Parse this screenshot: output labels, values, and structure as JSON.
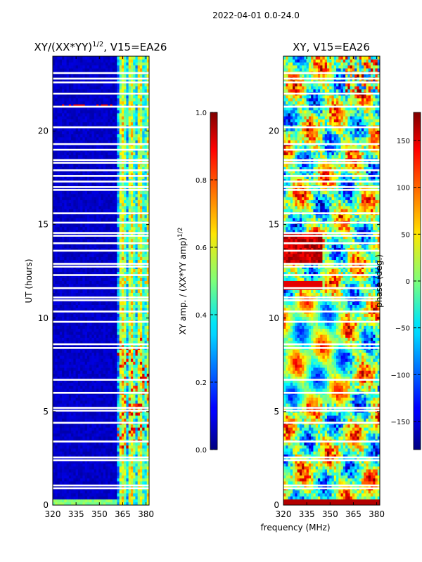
{
  "chart_data": {
    "suptitle": "2022-04-01 0.0-24.0",
    "shared_xlabel": "frequency (MHz)",
    "panels": [
      {
        "type": "heatmap",
        "title_main": "XY/(XX*YY)",
        "title_sup": "1/2",
        "title_tail": ", V15=EA26",
        "xlim": [
          320,
          382
        ],
        "ylim": [
          0,
          24
        ],
        "xticks": [
          320,
          335,
          350,
          365,
          380
        ],
        "yticks": [
          0,
          5,
          10,
          15,
          20
        ],
        "ylabel": "UT (hours)",
        "colorbar": {
          "label_main": "XY amp. / (XX*YY amp)",
          "label_sup": "1/2",
          "range": [
            0.0,
            1.0
          ],
          "ticks": [
            "0.0",
            "0.2",
            "0.4",
            "0.6",
            "0.8",
            "1.0"
          ],
          "tick_values": [
            0.0,
            0.2,
            0.4,
            0.6,
            0.8,
            1.0
          ],
          "colormap": "jet"
        },
        "flagged_hours": [
          0.9,
          1.05,
          2.4,
          2.55,
          3.4,
          4.4,
          5.05,
          5.2,
          6.0,
          6.7,
          8.4,
          8.6,
          9.8,
          10.35,
          10.95,
          11.1,
          11.6,
          12.3,
          12.75,
          12.9,
          13.6,
          14.0,
          14.4,
          14.55,
          15.1,
          15.6,
          16.85,
          17.0,
          17.3,
          17.6,
          17.9,
          18.3,
          18.45,
          19.0,
          19.3,
          20.2,
          21.3,
          22.0,
          22.6,
          22.8,
          23.1
        ]
      },
      {
        "type": "heatmap",
        "title": "XY, V15=EA26",
        "xlim": [
          320,
          382
        ],
        "ylim": [
          0,
          24
        ],
        "xticks": [
          320,
          335,
          350,
          365,
          380
        ],
        "yticks": [
          0,
          5,
          10,
          15,
          20
        ],
        "colorbar": {
          "label": "phase (deg.)",
          "range": [
            -180,
            180
          ],
          "ticks": [
            "−150",
            "−100",
            "−50",
            "0",
            "50",
            "100",
            "150"
          ],
          "tick_values": [
            -150,
            -100,
            -50,
            0,
            50,
            100,
            150
          ],
          "colormap": "jet"
        },
        "flagged_hours": [
          0.9,
          1.05,
          2.4,
          2.55,
          3.4,
          4.4,
          5.05,
          5.2,
          6.0,
          6.7,
          8.4,
          8.6,
          9.8,
          10.35,
          10.95,
          11.1,
          11.6,
          12.3,
          12.75,
          12.9,
          13.6,
          14.0,
          14.4,
          14.55,
          15.1,
          15.6,
          16.85,
          17.0,
          17.3,
          17.6,
          17.9,
          18.3,
          18.45,
          19.0,
          19.3,
          20.2,
          21.3,
          22.0,
          22.6,
          22.8,
          23.1
        ]
      }
    ]
  }
}
